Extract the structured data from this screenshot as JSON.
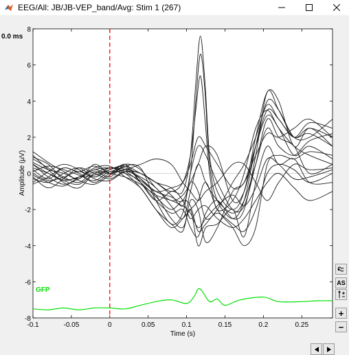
{
  "window": {
    "title": "EEG/All: JB/JB-VEP_band/Avg: Stim 1 (267)",
    "controls": [
      "minimize",
      "maximize",
      "close"
    ]
  },
  "time_readout": "0.0 ms",
  "toolbar": {
    "wave_icon": "display-mode-icon",
    "as_label": "AS",
    "updown_icon": "amplitude-scale-icon",
    "zoom_in_label": "+",
    "zoom_out_label": "−"
  },
  "scrollbar": {
    "left_icon": "scroll-left-icon",
    "right_icon": "scroll-right-icon"
  },
  "colors": {
    "traces": "#1a1a1a",
    "gfp": "#00e000",
    "cursor": "#ff0000"
  },
  "chart_data": {
    "type": "line",
    "xlabel": "Time (s)",
    "ylabel": "Amplitude (μV)",
    "xlim": [
      -0.1,
      0.29
    ],
    "ylim": [
      -8,
      8
    ],
    "xticks": [
      -0.1,
      -0.05,
      0,
      0.05,
      0.1,
      0.15,
      0.2,
      0.25
    ],
    "xtick_labels": [
      "-0.1",
      "-0.05",
      "0",
      "0.05",
      "0.1",
      "0.15",
      "0.2",
      "0.25"
    ],
    "yticks": [
      -8,
      -6,
      -4,
      -2,
      0,
      2,
      4,
      6,
      8
    ],
    "ytick_labels": [
      "-8",
      "-6",
      "-4",
      "-2",
      "0",
      "2",
      "4",
      "6",
      "8"
    ],
    "cursor_x": 0,
    "gfp_label": "GFP",
    "gfp": {
      "x": [
        -0.1,
        -0.08,
        -0.06,
        -0.04,
        -0.02,
        0,
        0.02,
        0.04,
        0.06,
        0.08,
        0.1,
        0.11,
        0.115,
        0.12,
        0.13,
        0.14,
        0.15,
        0.17,
        0.2,
        0.22,
        0.25,
        0.27,
        0.29
      ],
      "y": [
        -7.5,
        -7.55,
        -7.45,
        -7.55,
        -7.45,
        -7.45,
        -7.5,
        -7.3,
        -7.1,
        -7.0,
        -7.2,
        -6.8,
        -6.4,
        -6.5,
        -7.1,
        -6.95,
        -7.3,
        -7.0,
        -6.85,
        -7.1,
        -7.1,
        -7.05,
        -7.05
      ]
    },
    "series": [
      {
        "x": [
          -0.1,
          -0.08,
          -0.06,
          -0.04,
          -0.02,
          0,
          0.02,
          0.04,
          0.06,
          0.08,
          0.095,
          0.105,
          0.115,
          0.125,
          0.14,
          0.16,
          0.175,
          0.19,
          0.205,
          0.22,
          0.24,
          0.26,
          0.29
        ],
        "y": [
          0.5,
          0.0,
          -0.4,
          -0.2,
          -0.1,
          0.2,
          0.4,
          -0.5,
          -1.5,
          -2.2,
          -2.0,
          -3.0,
          -3.5,
          -2.2,
          -1.5,
          -2.5,
          -2.0,
          1.0,
          4.5,
          3.5,
          2.0,
          2.5,
          2.0
        ]
      },
      {
        "x": [
          -0.1,
          -0.08,
          -0.06,
          -0.04,
          -0.02,
          0,
          0.02,
          0.04,
          0.06,
          0.08,
          0.095,
          0.105,
          0.115,
          0.125,
          0.14,
          0.16,
          0.175,
          0.19,
          0.205,
          0.22,
          0.24,
          0.26,
          0.29
        ],
        "y": [
          -0.3,
          -0.5,
          0.0,
          0.3,
          -0.2,
          0.3,
          0.0,
          -0.8,
          -2.0,
          -3.0,
          -2.5,
          -2.0,
          -1.5,
          -0.5,
          -2.0,
          -3.0,
          -4.0,
          -3.0,
          0.5,
          1.0,
          0.8,
          1.2,
          1.0
        ]
      },
      {
        "x": [
          -0.1,
          -0.08,
          -0.06,
          -0.04,
          -0.02,
          0,
          0.02,
          0.04,
          0.06,
          0.08,
          0.095,
          0.105,
          0.115,
          0.125,
          0.14,
          0.16,
          0.175,
          0.19,
          0.205,
          0.22,
          0.24,
          0.26,
          0.29
        ],
        "y": [
          0.8,
          0.3,
          -0.2,
          -0.5,
          0.1,
          -0.2,
          0.5,
          0.2,
          -0.8,
          -1.5,
          -1.2,
          -0.5,
          0.5,
          1.5,
          1.0,
          -1.5,
          -1.0,
          1.5,
          3.5,
          3.0,
          2.0,
          2.8,
          2.5
        ]
      },
      {
        "x": [
          -0.1,
          -0.08,
          -0.06,
          -0.04,
          -0.02,
          0,
          0.02,
          0.04,
          0.06,
          0.08,
          0.095,
          0.105,
          0.115,
          0.125,
          0.14,
          0.16,
          0.175,
          0.19,
          0.205,
          0.22,
          0.24,
          0.26,
          0.29
        ],
        "y": [
          1.0,
          0.2,
          -0.5,
          -0.8,
          0.0,
          0.1,
          0.3,
          -0.3,
          -1.2,
          -2.5,
          -3.0,
          -2.0,
          -4.0,
          -3.0,
          -2.8,
          -2.0,
          -3.5,
          -0.5,
          1.5,
          0.5,
          0.8,
          -0.5,
          -0.5
        ]
      },
      {
        "x": [
          -0.1,
          -0.08,
          -0.06,
          -0.04,
          -0.02,
          0,
          0.02,
          0.04,
          0.06,
          0.08,
          0.095,
          0.105,
          0.115,
          0.125,
          0.14,
          0.16,
          0.175,
          0.19,
          0.205,
          0.22,
          0.24,
          0.26,
          0.29
        ],
        "y": [
          0.2,
          -0.3,
          0.3,
          0.0,
          -0.5,
          0.0,
          0.2,
          0.5,
          0.8,
          0.5,
          -0.5,
          -1.0,
          -1.5,
          -1.0,
          -0.5,
          0.5,
          0.5,
          -0.5,
          -1.5,
          -0.5,
          0.5,
          0.2,
          0.3
        ]
      },
      {
        "x": [
          -0.1,
          -0.08,
          -0.06,
          -0.04,
          -0.02,
          0,
          0.02,
          0.04,
          0.06,
          0.08,
          0.095,
          0.105,
          0.115,
          0.125,
          0.14,
          0.16,
          0.175,
          0.19,
          0.205,
          0.22,
          0.24,
          0.26,
          0.29
        ],
        "y": [
          -0.5,
          0.1,
          0.5,
          0.2,
          -0.3,
          -0.4,
          0.1,
          0.0,
          -0.5,
          -0.8,
          -1.5,
          -2.5,
          -2.0,
          -1.8,
          -2.5,
          -3.0,
          -2.5,
          -1.5,
          -0.5,
          0.0,
          -0.8,
          -1.5,
          -1.0
        ]
      },
      {
        "x": [
          -0.1,
          -0.08,
          -0.06,
          -0.04,
          -0.02,
          0,
          0.02,
          0.04,
          0.06,
          0.08,
          0.095,
          0.105,
          0.112,
          0.118,
          0.124,
          0.13,
          0.14,
          0.16,
          0.175,
          0.19,
          0.205,
          0.22,
          0.24,
          0.26,
          0.29
        ],
        "y": [
          0.5,
          -0.2,
          -0.6,
          -0.3,
          0.2,
          0.0,
          0.5,
          -0.5,
          -1.5,
          -1.0,
          -1.0,
          1.0,
          5.0,
          7.6,
          5.0,
          1.0,
          -1.0,
          -2.0,
          -1.0,
          2.0,
          4.5,
          4.0,
          1.5,
          2.5,
          1.5
        ]
      },
      {
        "x": [
          -0.1,
          -0.08,
          -0.06,
          -0.04,
          -0.02,
          0,
          0.02,
          0.04,
          0.06,
          0.08,
          0.095,
          0.105,
          0.112,
          0.118,
          0.124,
          0.13,
          0.14,
          0.16,
          0.175,
          0.19,
          0.205,
          0.22,
          0.24,
          0.26,
          0.29
        ],
        "y": [
          0.3,
          0.0,
          -0.4,
          -0.6,
          0.0,
          0.3,
          0.2,
          -0.3,
          -1.0,
          -1.3,
          -1.5,
          0.0,
          4.0,
          6.6,
          4.5,
          0.5,
          -1.5,
          -2.5,
          -1.5,
          1.5,
          4.0,
          3.5,
          2.0,
          2.0,
          3.0
        ]
      },
      {
        "x": [
          -0.1,
          -0.08,
          -0.06,
          -0.04,
          -0.02,
          0,
          0.02,
          0.04,
          0.06,
          0.08,
          0.095,
          0.105,
          0.112,
          0.118,
          0.124,
          0.13,
          0.14,
          0.16,
          0.175,
          0.19,
          0.205,
          0.22,
          0.24,
          0.26,
          0.29
        ],
        "y": [
          0.0,
          -0.4,
          -0.2,
          0.1,
          -0.2,
          0.2,
          0.4,
          0.0,
          -0.5,
          -1.0,
          -0.5,
          1.0,
          3.5,
          5.4,
          3.0,
          0.0,
          -2.0,
          -1.5,
          0.0,
          2.5,
          3.5,
          2.5,
          1.5,
          1.0,
          0.5
        ]
      },
      {
        "x": [
          -0.1,
          -0.08,
          -0.06,
          -0.04,
          -0.02,
          0,
          0.02,
          0.04,
          0.06,
          0.08,
          0.095,
          0.105,
          0.115,
          0.125,
          0.14,
          0.16,
          0.175,
          0.19,
          0.205,
          0.22,
          0.24,
          0.26,
          0.29
        ],
        "y": [
          0.6,
          0.2,
          0.0,
          -0.4,
          -0.6,
          -0.1,
          0.4,
          0.3,
          -1.5,
          -2.8,
          -2.2,
          0.0,
          1.5,
          1.0,
          -0.5,
          -2.0,
          -1.8,
          0.5,
          3.0,
          2.0,
          1.5,
          0.0,
          0.5
        ]
      },
      {
        "x": [
          -0.1,
          -0.08,
          -0.06,
          -0.04,
          -0.02,
          0,
          0.02,
          0.04,
          0.06,
          0.08,
          0.095,
          0.105,
          0.115,
          0.125,
          0.14,
          0.16,
          0.175,
          0.19,
          0.205,
          0.22,
          0.24,
          0.26,
          0.29
        ],
        "y": [
          -0.2,
          -0.8,
          -0.3,
          0.3,
          0.0,
          -0.3,
          0.1,
          -0.2,
          -0.8,
          -1.8,
          -2.5,
          -1.0,
          0.5,
          -0.5,
          -1.5,
          -2.2,
          -1.5,
          0.5,
          2.5,
          1.5,
          1.0,
          1.8,
          2.2
        ]
      },
      {
        "x": [
          -0.1,
          -0.08,
          -0.06,
          -0.04,
          -0.02,
          0,
          0.02,
          0.04,
          0.06,
          0.08,
          0.095,
          0.105,
          0.115,
          0.125,
          0.14,
          0.16,
          0.175,
          0.19,
          0.205,
          0.22,
          0.24,
          0.26,
          0.29
        ],
        "y": [
          0.9,
          0.5,
          -0.3,
          -0.2,
          0.3,
          0.4,
          -0.2,
          -0.8,
          -2.0,
          -2.8,
          -3.2,
          -1.5,
          -2.0,
          -3.8,
          -3.0,
          -1.0,
          -0.5,
          1.5,
          3.2,
          2.5,
          1.0,
          1.5,
          0.8
        ]
      },
      {
        "x": [
          -0.1,
          -0.08,
          -0.06,
          -0.04,
          -0.02,
          0,
          0.02,
          0.04,
          0.06,
          0.08,
          0.095,
          0.105,
          0.115,
          0.125,
          0.14,
          0.16,
          0.175,
          0.19,
          0.205,
          0.22,
          0.24,
          0.26,
          0.29
        ],
        "y": [
          0.1,
          0.4,
          0.2,
          -0.1,
          -0.4,
          0.1,
          0.0,
          -0.4,
          -1.0,
          -0.8,
          -0.5,
          0.5,
          2.0,
          1.5,
          0.5,
          -0.8,
          -0.5,
          1.0,
          2.2,
          2.0,
          2.5,
          3.0,
          2.0
        ]
      },
      {
        "x": [
          -0.1,
          -0.08,
          -0.06,
          -0.04,
          -0.02,
          0,
          0.02,
          0.04,
          0.06,
          0.08,
          0.095,
          0.105,
          0.115,
          0.125,
          0.14,
          0.16,
          0.175,
          0.19,
          0.205,
          0.22,
          0.24,
          0.26,
          0.29
        ],
        "y": [
          -0.6,
          -0.2,
          0.3,
          0.1,
          0.4,
          0.0,
          -0.2,
          -0.6,
          -1.2,
          -1.5,
          -1.8,
          -2.2,
          -3.0,
          -2.5,
          -1.8,
          -1.2,
          -1.8,
          -0.8,
          0.8,
          0.5,
          -0.3,
          -0.2,
          0.2
        ]
      },
      {
        "x": [
          -0.1,
          -0.08,
          -0.06,
          -0.04,
          -0.02,
          0,
          0.02,
          0.04,
          0.06,
          0.08,
          0.095,
          0.105,
          0.115,
          0.125,
          0.14,
          0.16,
          0.175,
          0.19,
          0.205,
          0.22,
          0.24,
          0.26,
          0.29
        ],
        "y": [
          1.2,
          0.6,
          0.1,
          -0.3,
          0.5,
          0.0,
          0.2,
          0.0,
          -0.5,
          -1.2,
          -1.8,
          -0.5,
          -1.0,
          -2.5,
          -2.0,
          -0.5,
          0.5,
          2.0,
          3.8,
          3.0,
          2.0,
          2.2,
          1.5
        ]
      },
      {
        "x": [
          -0.1,
          -0.08,
          -0.06,
          -0.04,
          -0.02,
          0,
          0.02,
          0.04,
          0.06,
          0.08,
          0.095,
          0.105,
          0.115,
          0.125,
          0.14,
          0.16,
          0.175,
          0.19,
          0.205,
          0.22,
          0.24,
          0.26,
          0.29
        ],
        "y": [
          -0.1,
          -0.5,
          -0.7,
          -0.2,
          0.2,
          0.3,
          0.1,
          -0.5,
          -1.3,
          -2.0,
          -1.5,
          -1.8,
          -3.2,
          -2.8,
          -2.2,
          -2.8,
          -3.2,
          -2.0,
          0.0,
          0.5,
          0.2,
          -0.5,
          0.0
        ]
      }
    ]
  }
}
